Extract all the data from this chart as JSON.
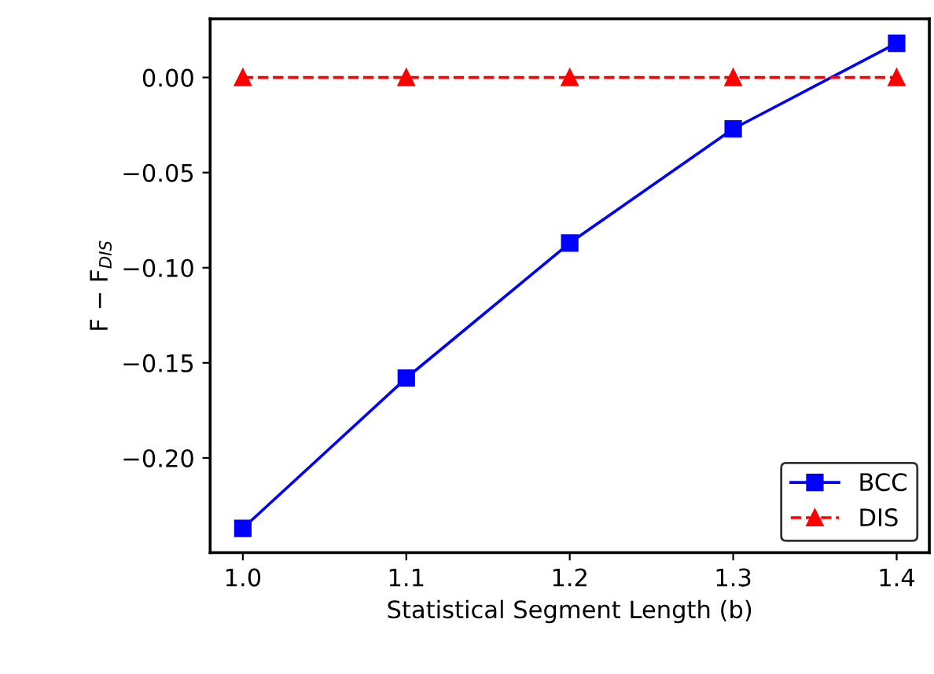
{
  "chart_data": {
    "type": "line",
    "xlabel": "Statistical Segment Length (b)",
    "ylabel": "F − F$_{DIS}$",
    "x": [
      1.0,
      1.1,
      1.2,
      1.3,
      1.4
    ],
    "series": [
      {
        "name": "BCC",
        "color": "#0000ff",
        "values": [
          -0.237,
          -0.158,
          -0.087,
          -0.027,
          0.018
        ],
        "marker": "square",
        "line_style": "solid"
      },
      {
        "name": "DIS",
        "color": "#ff0000",
        "values": [
          0,
          0,
          0,
          0,
          0
        ],
        "marker": "triangle",
        "line_style": "dashed"
      }
    ],
    "xlim": [
      0.98,
      1.42
    ],
    "xticks": [
      {
        "value": 1.0,
        "label": "1.0"
      },
      1.1,
      1.2,
      1.3,
      1.4
    ],
    "ylim": [
      -0.2498,
      0.0308
    ],
    "yticks": [
      {
        "value": -0.2,
        "label": "−0.20"
      },
      {
        "value": -0.15,
        "label": "−0.15"
      },
      {
        "value": -0.1,
        "label": "−0.10"
      },
      {
        "value": -0.05,
        "label": "−0.05"
      },
      {
        "value": 0.0,
        "label": "0.00"
      }
    ],
    "grid": false,
    "legend": "bottom right"
  }
}
